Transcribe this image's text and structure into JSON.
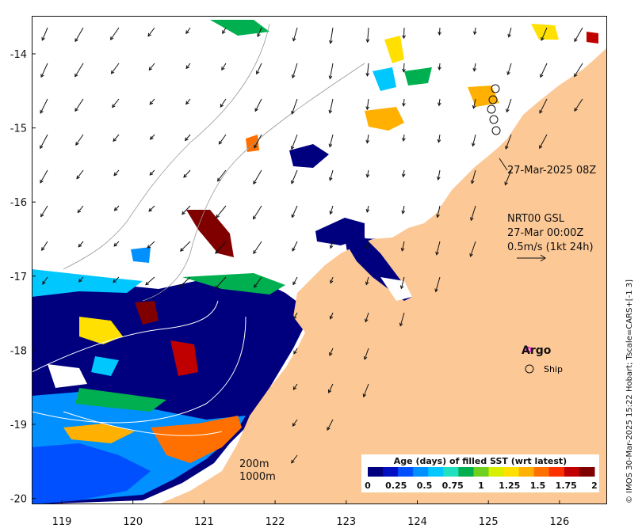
{
  "map": {
    "lon_ticks": [
      "119",
      "120",
      "121",
      "122",
      "123",
      "124",
      "125",
      "126"
    ],
    "lat_ticks": [
      "-14",
      "-15",
      "-16",
      "-17",
      "-18",
      "-19",
      "-20"
    ],
    "timestamp_label": "27-Mar-2025 08Z",
    "current_info": {
      "line1": "NRT00 GSL",
      "line2": "27-Mar 00:00Z",
      "line3": "0.5m/s (1kt 24h)"
    },
    "legend_items": {
      "argo": "Argo",
      "ship": "Ship"
    },
    "contours": {
      "c200": "200m",
      "c1000": "1000m"
    },
    "colorbar": {
      "title": "Age (days) of filled SST (wrt latest)",
      "ticks": [
        "0",
        "0.25",
        "0.5",
        "0.75",
        "1",
        "1.25",
        "1.5",
        "1.75",
        "2"
      ],
      "colors": [
        "#00007f",
        "#0010c0",
        "#0050ff",
        "#0090ff",
        "#00c8ff",
        "#20e0c0",
        "#00b050",
        "#70d020",
        "#d8f000",
        "#ffe000",
        "#ffb000",
        "#ff7000",
        "#ff3000",
        "#c00000",
        "#800000"
      ]
    },
    "side_caption": "© IMOS 30-Mar-2025 15:22 Hobart; Tscale=CARS+[-1 3]",
    "colors": {
      "land": "#fcc896",
      "ocean_nodata": "#ffffff",
      "argo_marker": "#e000e0"
    }
  }
}
